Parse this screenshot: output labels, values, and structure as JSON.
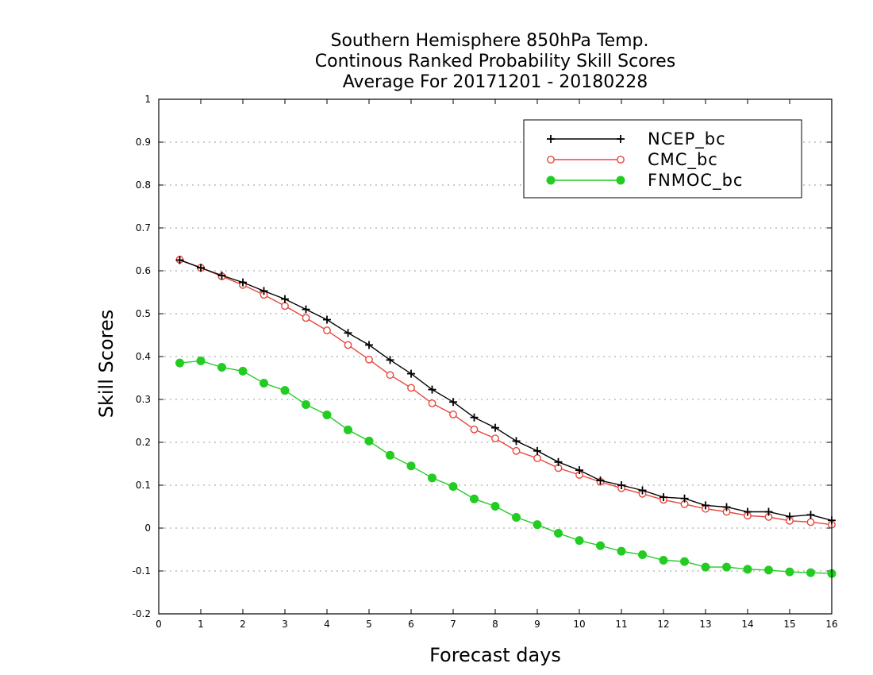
{
  "chart_data": {
    "type": "line",
    "title": [
      "Southern Hemisphere 850hPa Temp.",
      "Continous Ranked Probability Skill Scores",
      "Average For 20171201 - 20180228"
    ],
    "xlabel": "Forecast days",
    "ylabel": "Skill Scores",
    "xlim": [
      0,
      16
    ],
    "ylim": [
      -0.2,
      1
    ],
    "xticks": [
      "0",
      "1",
      "2",
      "3",
      "4",
      "5",
      "6",
      "7",
      "8",
      "9",
      "10",
      "11",
      "12",
      "13",
      "14",
      "15",
      "16"
    ],
    "yticks": [
      "-0.2",
      "-0.1",
      "0",
      "0.1",
      "0.2",
      "0.3",
      "0.4",
      "0.5",
      "0.6",
      "0.7",
      "0.8",
      "0.9",
      "1"
    ],
    "grid": "horizontal dotted",
    "legend_position": "top-right",
    "x": [
      0.5,
      1,
      1.5,
      2,
      2.5,
      3,
      3.5,
      4,
      4.5,
      5,
      5.5,
      6,
      6.5,
      7,
      7.5,
      8,
      8.5,
      9,
      9.5,
      10,
      10.5,
      11,
      11.5,
      12,
      12.5,
      13,
      13.5,
      14,
      14.5,
      15,
      15.5,
      16
    ],
    "series": [
      {
        "name": "NCEP_bc",
        "color": "#000000",
        "marker": "plus",
        "values": [
          0.625,
          0.607,
          0.589,
          0.573,
          0.553,
          0.534,
          0.51,
          0.486,
          0.455,
          0.427,
          0.392,
          0.36,
          0.323,
          0.294,
          0.258,
          0.234,
          0.203,
          0.18,
          0.154,
          0.135,
          0.111,
          0.1,
          0.088,
          0.072,
          0.069,
          0.053,
          0.049,
          0.038,
          0.038,
          0.027,
          0.031,
          0.018
        ]
      },
      {
        "name": "CMC_bc",
        "color": "#e8453c",
        "marker": "open-circle",
        "values": [
          0.626,
          0.607,
          0.587,
          0.567,
          0.544,
          0.518,
          0.49,
          0.461,
          0.427,
          0.393,
          0.357,
          0.327,
          0.291,
          0.265,
          0.23,
          0.209,
          0.18,
          0.163,
          0.14,
          0.124,
          0.108,
          0.093,
          0.08,
          0.066,
          0.056,
          0.045,
          0.038,
          0.029,
          0.026,
          0.017,
          0.014,
          0.008
        ]
      },
      {
        "name": "FNMOC_bc",
        "color": "#22cc22",
        "marker": "filled-circle",
        "values": [
          0.385,
          0.39,
          0.375,
          0.366,
          0.338,
          0.321,
          0.288,
          0.264,
          0.229,
          0.203,
          0.17,
          0.145,
          0.117,
          0.097,
          0.068,
          0.051,
          0.025,
          0.008,
          -0.012,
          -0.029,
          -0.041,
          -0.054,
          -0.062,
          -0.075,
          -0.078,
          -0.091,
          -0.091,
          -0.096,
          -0.098,
          -0.102,
          -0.104,
          -0.106
        ]
      }
    ]
  }
}
